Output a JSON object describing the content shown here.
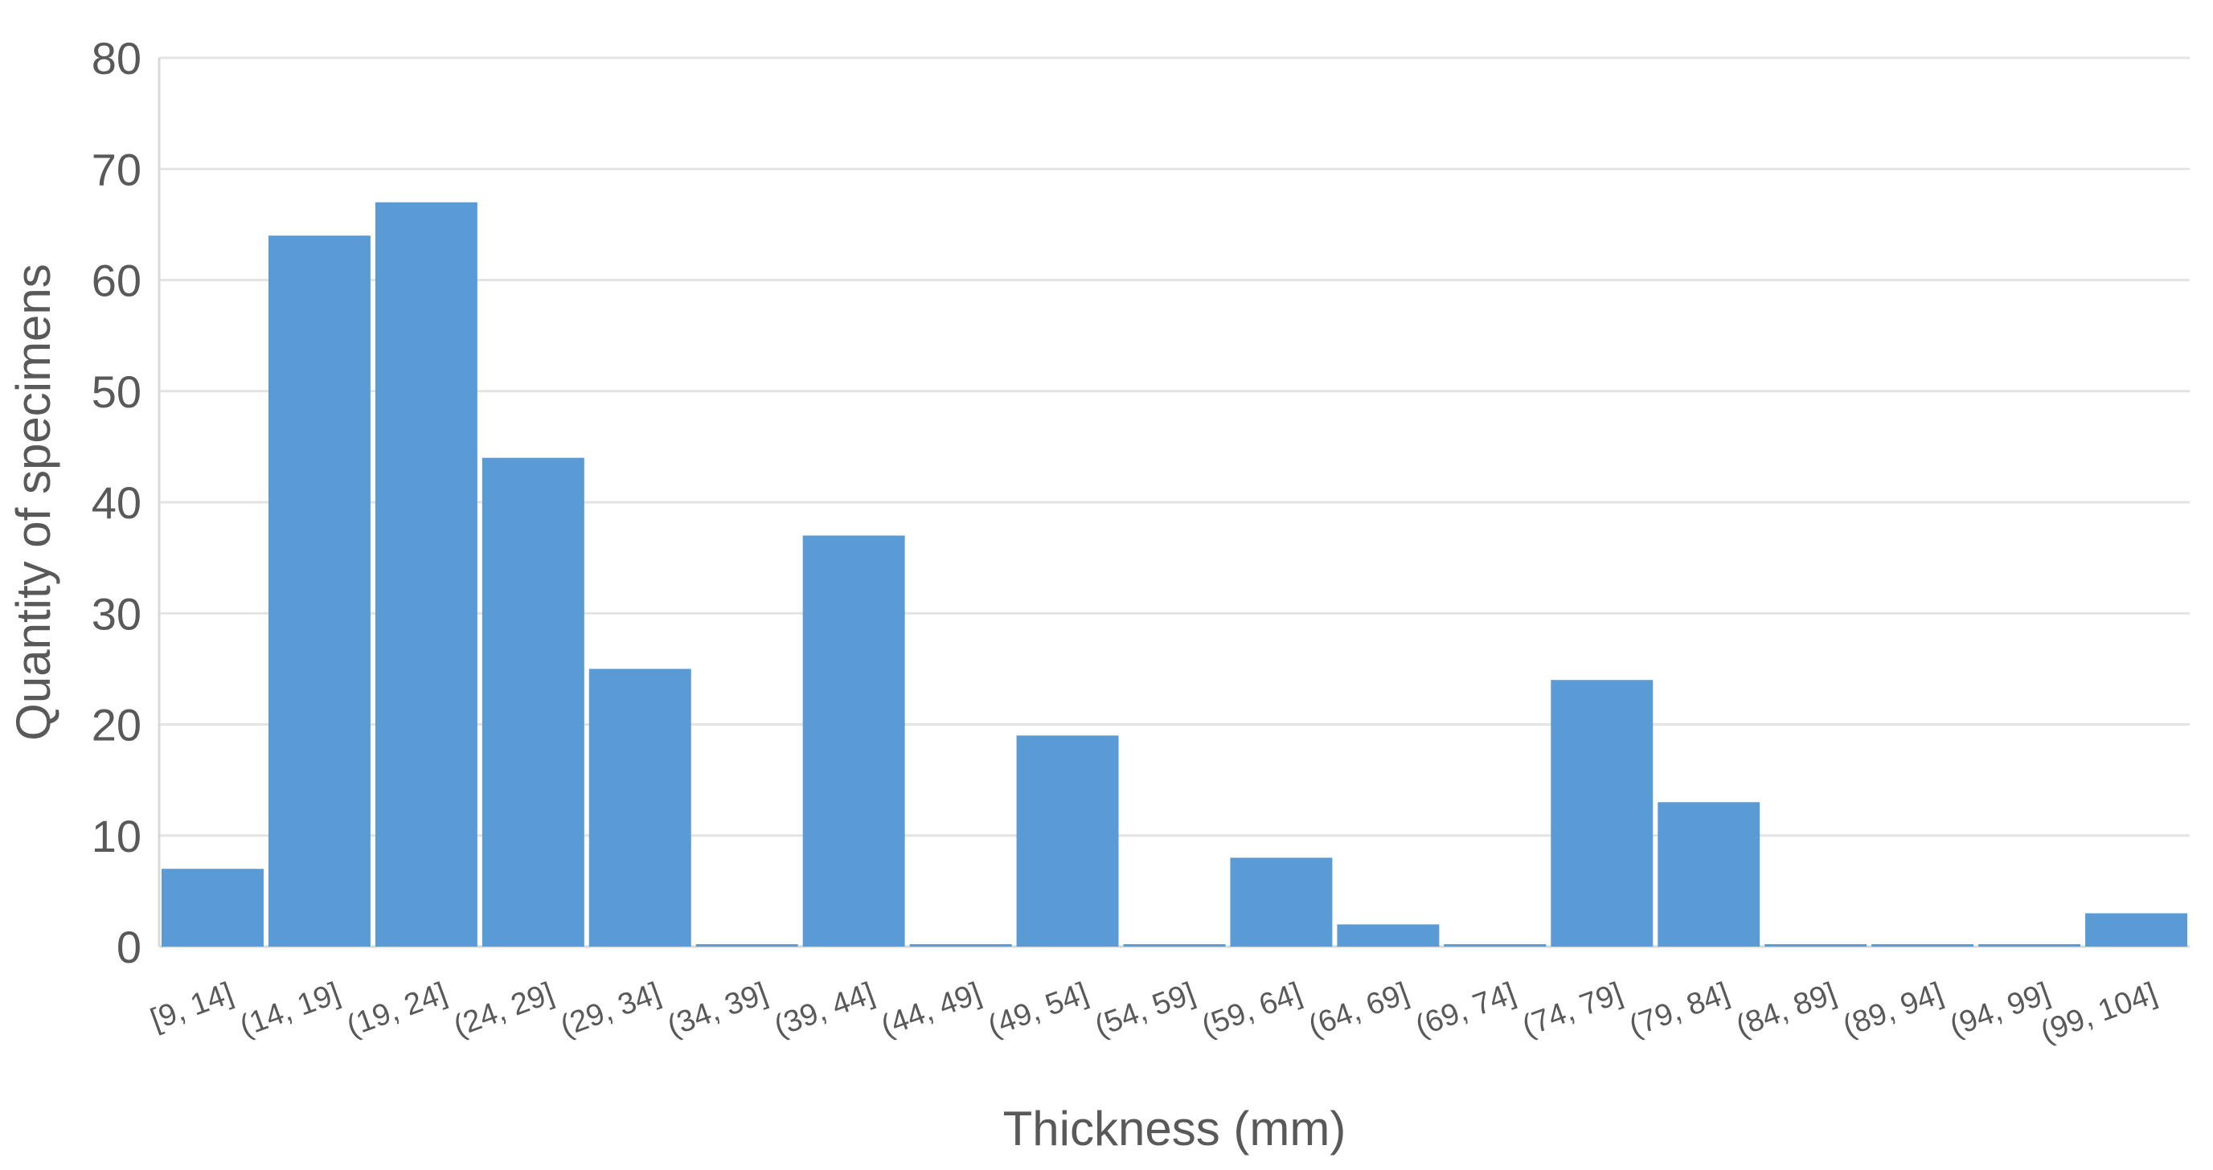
{
  "chart_data": {
    "type": "bar",
    "title": "",
    "xlabel": "Thickness (mm)",
    "ylabel": "Quantity of specimens",
    "categories": [
      "[9, 14]",
      "(14, 19]",
      "(19, 24]",
      "(24, 29]",
      "(29, 34]",
      "(34, 39]",
      "(39, 44]",
      "(44, 49]",
      "(49, 54]",
      "(54, 59]",
      "(59, 64]",
      "(64, 69]",
      "(69, 74]",
      "(74, 79]",
      "(79, 84]",
      "(84, 89]",
      "(89, 94]",
      "(94, 99]",
      "(99, 104]"
    ],
    "values": [
      7,
      64,
      67,
      44,
      25,
      0,
      37,
      0,
      19,
      0,
      8,
      2,
      0,
      24,
      13,
      0,
      0,
      0,
      3
    ],
    "ylim": [
      0,
      80
    ],
    "yticks": [
      0,
      10,
      20,
      30,
      40,
      50,
      60,
      70,
      80
    ],
    "grid": true,
    "legend": "none",
    "bar_color": "#5b9bd5"
  }
}
